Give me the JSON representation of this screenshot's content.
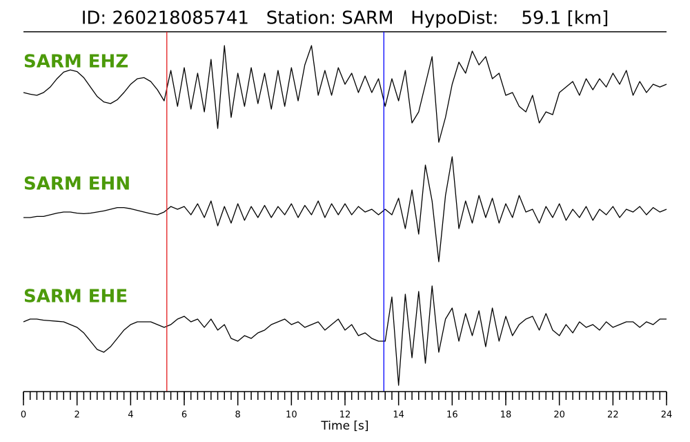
{
  "chart_data": {
    "type": "line",
    "title": "ID: 260218085741   Station: SARM   HypoDist:    59.1 [km]",
    "xlabel": "Time [s]",
    "xlim": [
      0,
      24
    ],
    "xticks": [
      0,
      2,
      4,
      6,
      8,
      10,
      12,
      14,
      16,
      18,
      20,
      22,
      24
    ],
    "xminorticks": [
      0,
      0.25,
      0.5,
      0.75,
      1,
      1.25,
      1.5,
      1.75,
      2,
      2.25,
      2.5,
      2.75,
      3,
      3.25,
      3.5,
      3.75,
      4,
      4.25,
      4.5,
      4.75,
      5,
      5.25,
      5.5,
      5.75,
      6,
      6.25,
      6.5,
      6.75,
      7,
      7.25,
      7.5,
      7.75,
      8,
      8.25,
      8.5,
      8.75,
      9,
      9.25,
      9.5,
      9.75,
      10,
      10.25,
      10.5,
      10.75,
      11,
      11.25,
      11.5,
      11.75,
      12,
      12.25,
      12.5,
      12.75,
      13,
      13.25,
      13.5,
      13.75,
      14,
      14.25,
      14.5,
      14.75,
      15,
      15.25,
      15.5,
      15.75,
      16,
      16.25,
      16.5,
      16.75,
      17,
      17.25,
      17.5,
      17.75,
      18,
      18.25,
      18.5,
      18.75,
      19,
      19.25,
      19.5,
      19.75,
      20,
      20.25,
      20.5,
      20.75,
      21,
      21.25,
      21.5,
      21.75,
      22,
      22.25,
      22.5,
      22.75,
      23,
      23.25,
      23.5,
      23.75,
      24
    ],
    "ylim": [
      -1.1,
      1.1
    ],
    "vlines": [
      {
        "x": 5.35,
        "color": "#e31a1c"
      },
      {
        "x": 13.45,
        "color": "#0000ff"
      }
    ],
    "x": [
      0,
      0.25,
      0.5,
      0.75,
      1,
      1.25,
      1.5,
      1.75,
      2,
      2.25,
      2.5,
      2.75,
      3,
      3.25,
      3.5,
      3.75,
      4,
      4.25,
      4.5,
      4.75,
      5,
      5.25,
      5.5,
      5.75,
      6,
      6.25,
      6.5,
      6.75,
      7,
      7.25,
      7.5,
      7.75,
      8,
      8.25,
      8.5,
      8.75,
      9,
      9.25,
      9.5,
      9.75,
      10,
      10.25,
      10.5,
      10.75,
      11,
      11.25,
      11.5,
      11.75,
      12,
      12.25,
      12.5,
      12.75,
      13,
      13.25,
      13.5,
      13.75,
      14,
      14.25,
      14.5,
      14.75,
      15,
      15.25,
      15.5,
      15.75,
      16,
      16.25,
      16.5,
      16.75,
      17,
      17.25,
      17.5,
      17.75,
      18,
      18.25,
      18.5,
      18.75,
      19,
      19.25,
      19.5,
      19.75,
      20,
      20.25,
      20.5,
      20.75,
      21,
      21.25,
      21.5,
      21.75,
      22,
      22.25,
      22.5,
      22.75,
      23,
      23.25,
      23.5,
      23.75,
      24
    ],
    "label_color": "#4c9a0a",
    "series": [
      {
        "name": "SARM EHZ",
        "color": "#000000",
        "values": [
          -0.05,
          -0.08,
          -0.1,
          -0.05,
          0.05,
          0.2,
          0.32,
          0.36,
          0.33,
          0.22,
          0.05,
          -0.12,
          -0.22,
          -0.25,
          -0.18,
          -0.05,
          0.1,
          0.2,
          0.22,
          0.15,
          0.0,
          -0.2,
          0.35,
          -0.3,
          0.4,
          -0.35,
          0.3,
          -0.4,
          0.55,
          -0.7,
          0.8,
          -0.5,
          0.3,
          -0.3,
          0.4,
          -0.25,
          0.3,
          -0.35,
          0.35,
          -0.3,
          0.4,
          -0.2,
          0.45,
          0.8,
          -0.1,
          0.35,
          -0.1,
          0.4,
          0.1,
          0.3,
          -0.05,
          0.25,
          -0.05,
          0.2,
          -0.3,
          0.2,
          -0.2,
          0.35,
          -0.6,
          -0.4,
          0.1,
          0.6,
          -0.95,
          -0.5,
          0.1,
          0.5,
          0.3,
          0.7,
          0.45,
          0.6,
          0.2,
          0.3,
          -0.1,
          -0.05,
          -0.3,
          -0.4,
          -0.1,
          -0.6,
          -0.4,
          -0.45,
          -0.05,
          0.05,
          0.15,
          -0.1,
          0.2,
          0.0,
          0.2,
          0.05,
          0.3,
          0.1,
          0.35,
          -0.1,
          0.15,
          -0.05,
          0.1,
          0.05,
          0.1
        ]
      },
      {
        "name": "SARM EHN",
        "color": "#000000",
        "values": [
          -0.1,
          -0.1,
          -0.08,
          -0.08,
          -0.05,
          -0.02,
          0.0,
          0.0,
          -0.02,
          -0.03,
          -0.02,
          0.0,
          0.02,
          0.05,
          0.08,
          0.08,
          0.06,
          0.03,
          0.0,
          -0.03,
          -0.05,
          0.0,
          0.1,
          0.05,
          0.1,
          -0.05,
          0.15,
          -0.1,
          0.2,
          -0.25,
          0.1,
          -0.2,
          0.15,
          -0.15,
          0.1,
          -0.1,
          0.12,
          -0.1,
          0.1,
          -0.05,
          0.15,
          -0.1,
          0.12,
          -0.05,
          0.2,
          -0.1,
          0.15,
          -0.05,
          0.15,
          -0.05,
          0.1,
          0.0,
          0.05,
          -0.05,
          0.05,
          -0.05,
          0.25,
          -0.3,
          0.4,
          -0.4,
          0.85,
          0.2,
          -0.9,
          0.3,
          1.0,
          -0.3,
          0.2,
          -0.2,
          0.3,
          -0.1,
          0.25,
          -0.2,
          0.15,
          -0.1,
          0.3,
          0.0,
          0.05,
          -0.2,
          0.1,
          -0.1,
          0.15,
          -0.15,
          0.05,
          -0.1,
          0.1,
          -0.15,
          0.05,
          -0.05,
          0.1,
          -0.1,
          0.05,
          0.0,
          0.1,
          -0.05,
          0.08,
          0.0,
          0.05
        ]
      },
      {
        "name": "SARM EHE",
        "color": "#000000",
        "values": [
          0.05,
          0.1,
          0.1,
          0.08,
          0.07,
          0.06,
          0.05,
          0.0,
          -0.05,
          -0.15,
          -0.3,
          -0.45,
          -0.5,
          -0.4,
          -0.25,
          -0.1,
          0.0,
          0.05,
          0.05,
          0.05,
          0.0,
          -0.05,
          0.0,
          0.1,
          0.15,
          0.05,
          0.1,
          -0.05,
          0.1,
          -0.1,
          0.0,
          -0.25,
          -0.3,
          -0.2,
          -0.25,
          -0.15,
          -0.1,
          0.0,
          0.05,
          0.1,
          0.0,
          0.05,
          -0.05,
          0.0,
          0.05,
          -0.1,
          0.0,
          0.1,
          -0.1,
          0.0,
          -0.2,
          -0.15,
          -0.25,
          -0.3,
          -0.3,
          0.5,
          -1.1,
          0.55,
          -0.6,
          0.6,
          -0.7,
          0.7,
          -0.5,
          0.1,
          0.3,
          -0.3,
          0.2,
          -0.2,
          0.25,
          -0.4,
          0.3,
          -0.3,
          0.15,
          -0.2,
          0.0,
          0.1,
          0.15,
          -0.1,
          0.2,
          -0.1,
          -0.2,
          0.0,
          -0.15,
          0.05,
          -0.05,
          0.0,
          -0.1,
          0.05,
          -0.05,
          0.0,
          0.05,
          0.05,
          -0.05,
          0.05,
          0.0,
          0.1,
          0.1
        ]
      }
    ]
  }
}
